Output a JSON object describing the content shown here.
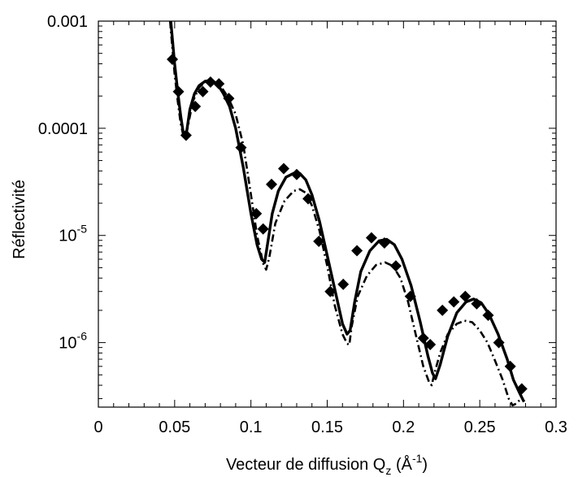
{
  "chart_data": {
    "type": "scatter",
    "title": "",
    "xlabel": "Vecteur de diffusion Q",
    "xlabel_sub": "z",
    "xlabel_unit_prefix": "(Å",
    "xlabel_unit_exp": "-1",
    "xlabel_unit_suffix": ")",
    "ylabel": "Réflectivité",
    "x_scale": "linear",
    "y_scale": "log",
    "xlim": [
      0,
      0.3
    ],
    "ylim": [
      2.5e-07,
      0.001
    ],
    "grid": false,
    "legend": "none",
    "x_ticks": [
      {
        "value": 0,
        "label": "0"
      },
      {
        "value": 0.05,
        "label": "0.05"
      },
      {
        "value": 0.1,
        "label": "0.1"
      },
      {
        "value": 0.15,
        "label": "0.15"
      },
      {
        "value": 0.2,
        "label": "0.2"
      },
      {
        "value": 0.25,
        "label": "0.25"
      },
      {
        "value": 0.3,
        "label": "0.3"
      }
    ],
    "y_ticks": [
      {
        "value": 0.001,
        "base": "0.001",
        "exp": ""
      },
      {
        "value": 0.0001,
        "base": "0.0001",
        "exp": ""
      },
      {
        "value": 1e-05,
        "base": "10",
        "exp": "-5"
      },
      {
        "value": 1e-06,
        "base": "10",
        "exp": "-6"
      }
    ],
    "series": [
      {
        "style": "markers",
        "marker": "diamond",
        "color": "#000000",
        "x": [
          0.0485,
          0.0525,
          0.0575,
          0.0635,
          0.0685,
          0.0735,
          0.079,
          0.0855,
          0.0935,
          0.1035,
          0.108,
          0.1135,
          0.1215,
          0.13,
          0.1375,
          0.1445,
          0.152,
          0.1605,
          0.1695,
          0.179,
          0.1875,
          0.195,
          0.2045,
          0.213,
          0.2175,
          0.2255,
          0.233,
          0.2405,
          0.248,
          0.2555,
          0.2625,
          0.27,
          0.2775
        ],
        "y": [
          0.00044,
          0.00022,
          8.6e-05,
          0.00016,
          0.00022,
          0.00027,
          0.00026,
          0.00019,
          6.6e-05,
          1.6e-05,
          1.15e-05,
          3e-05,
          4.2e-05,
          3.7e-05,
          2.2e-05,
          8.8e-06,
          3e-06,
          3.5e-06,
          7.2e-06,
          9.5e-06,
          8.5e-06,
          5.2e-06,
          2.7e-06,
          1.1e-06,
          9.6e-07,
          2e-06,
          2.4e-06,
          2.7e-06,
          2.3e-06,
          1.8e-06,
          1e-06,
          6e-07,
          3.7e-07
        ]
      },
      {
        "style": "solid",
        "color": "#000000",
        "x": [
          0.0475,
          0.05,
          0.052,
          0.054,
          0.056,
          0.058,
          0.06,
          0.063,
          0.066,
          0.07,
          0.074,
          0.078,
          0.082,
          0.086,
          0.09,
          0.095,
          0.1,
          0.104,
          0.107,
          0.109,
          0.111,
          0.114,
          0.118,
          0.123,
          0.128,
          0.132,
          0.136,
          0.14,
          0.145,
          0.15,
          0.156,
          0.16,
          0.163,
          0.165,
          0.168,
          0.172,
          0.178,
          0.184,
          0.189,
          0.194,
          0.199,
          0.205,
          0.211,
          0.216,
          0.219,
          0.221,
          0.224,
          0.229,
          0.235,
          0.241,
          0.246,
          0.251,
          0.256,
          0.262,
          0.268,
          0.272,
          0.2765,
          0.279
        ],
        "y": [
          0.001,
          0.0004,
          0.00022,
          0.00013,
          8.4e-05,
          9.5e-05,
          0.00015,
          0.00021,
          0.00025,
          0.000275,
          0.00028,
          0.00026,
          0.00021,
          0.00016,
          0.0001,
          4.3e-05,
          1.6e-05,
          8.2e-06,
          6e-06,
          5.6e-06,
          8.5e-06,
          1.6e-05,
          2.6e-05,
          3.5e-05,
          3.8e-05,
          3.8e-05,
          3.3e-05,
          2.4e-05,
          1.35e-05,
          6.5e-06,
          2.7e-06,
          1.5e-06,
          1.2e-06,
          1.3e-06,
          2.4e-06,
          4.6e-06,
          7.2e-06,
          8.9e-06,
          9.2e-06,
          8.2e-06,
          6e-06,
          3.4e-06,
          1.55e-06,
          7.5e-07,
          5.2e-07,
          4.6e-07,
          6.2e-07,
          1.15e-06,
          1.9e-06,
          2.4e-06,
          2.55e-06,
          2.35e-06,
          1.85e-06,
          1.2e-06,
          7e-07,
          4.5e-07,
          3.3e-07,
          2.8e-07
        ]
      },
      {
        "style": "dash-dot",
        "color": "#000000",
        "x": [
          0.047,
          0.05,
          0.052,
          0.054,
          0.056,
          0.057,
          0.059,
          0.062,
          0.066,
          0.07,
          0.075,
          0.08,
          0.085,
          0.09,
          0.095,
          0.1,
          0.104,
          0.108,
          0.11,
          0.112,
          0.116,
          0.122,
          0.128,
          0.132,
          0.136,
          0.14,
          0.145,
          0.15,
          0.155,
          0.16,
          0.163,
          0.1645,
          0.166,
          0.17,
          0.176,
          0.182,
          0.188,
          0.193,
          0.198,
          0.203,
          0.208,
          0.213,
          0.217,
          0.2185,
          0.22,
          0.224,
          0.229,
          0.235,
          0.24,
          0.245,
          0.25,
          0.255,
          0.26,
          0.265,
          0.269,
          0.2715,
          0.274,
          0.277
        ],
        "y": [
          0.001,
          0.00032,
          0.00018,
          0.00011,
          8.2e-05,
          8e-05,
          0.00011,
          0.00018,
          0.00024,
          0.00027,
          0.000275,
          0.00025,
          0.000195,
          0.000135,
          7e-05,
          2.4e-05,
          1e-05,
          5.5e-06,
          4.8e-06,
          6.2e-06,
          1.3e-05,
          2.1e-05,
          2.6e-05,
          2.7e-05,
          2.5e-05,
          1.9e-05,
          1.1e-05,
          5.2e-06,
          2.2e-06,
          1.2e-06,
          9.8e-07,
          9.5e-07,
          1.4e-06,
          2.7e-06,
          4.2e-06,
          5.3e-06,
          5.6e-06,
          5.2e-06,
          4e-06,
          2.4e-06,
          1.2e-06,
          6e-07,
          4.2e-07,
          4e-07,
          5e-07,
          8e-07,
          1.2e-06,
          1.5e-06,
          1.6e-06,
          1.55e-06,
          1.3e-06,
          1e-06,
          6.8e-07,
          4.5e-07,
          3e-07,
          2.6e-07,
          2.7e-07,
          3e-07
        ]
      }
    ]
  }
}
